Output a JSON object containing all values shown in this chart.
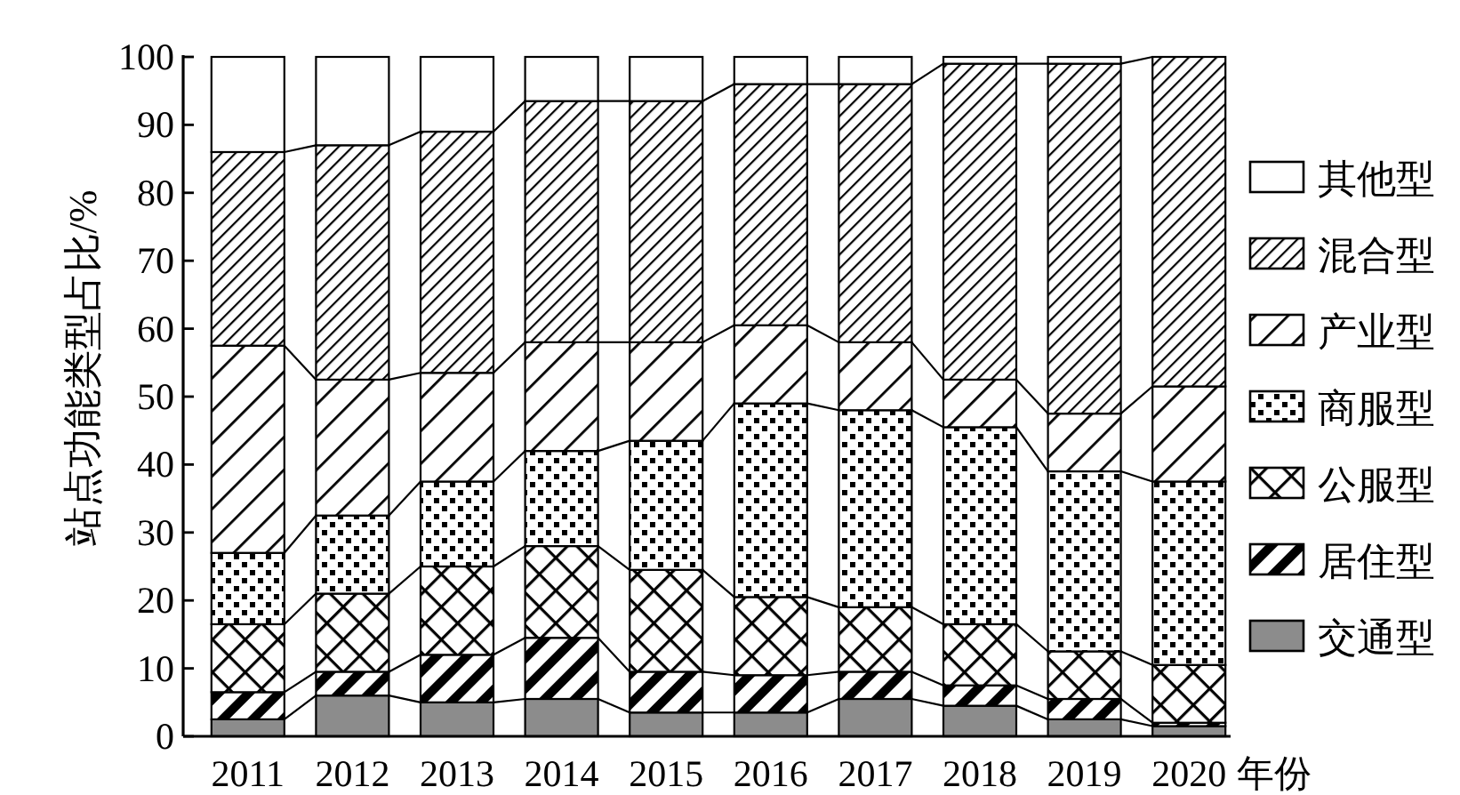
{
  "chart_data": {
    "type": "bar",
    "stacked": true,
    "categories": [
      "2011",
      "2012",
      "2013",
      "2014",
      "2015",
      "2016",
      "2017",
      "2018",
      "2019",
      "2020"
    ],
    "xlabel": "年份",
    "ylabel": "站点功能类型占比/%",
    "ylim": [
      0,
      100
    ],
    "yticks": [
      0,
      10,
      20,
      30,
      40,
      50,
      60,
      70,
      80,
      90,
      100
    ],
    "legend": "right",
    "series": [
      {
        "name": "交通型",
        "color": "#8c8c8c",
        "values": [
          2.5,
          6,
          5,
          5.5,
          3.5,
          3.5,
          5.5,
          4.5,
          2.5,
          1.5
        ]
      },
      {
        "name": "居住型",
        "color": "#000000",
        "values": [
          4,
          3.5,
          7,
          9,
          6,
          5.5,
          4,
          3,
          3,
          0.5
        ]
      },
      {
        "name": "公服型",
        "color": "#000000",
        "values": [
          10,
          11.5,
          13,
          13.5,
          15,
          11.5,
          9.5,
          9,
          7,
          8.5
        ]
      },
      {
        "name": "商服型",
        "color": "#000000",
        "values": [
          10.5,
          11.5,
          12.5,
          14,
          19,
          28.5,
          29,
          29,
          26.5,
          27
        ]
      },
      {
        "name": "产业型",
        "color": "#000000",
        "values": [
          30.5,
          20,
          16,
          16,
          14.5,
          11.5,
          10,
          7,
          8.5,
          14
        ]
      },
      {
        "name": "混合型",
        "color": "#000000",
        "values": [
          28.5,
          34.5,
          35.5,
          35.5,
          35.5,
          35.5,
          38,
          46.5,
          51.5,
          48.5
        ]
      },
      {
        "name": "其他型",
        "color": "#ffffff",
        "values": [
          14,
          13,
          11,
          6.5,
          6.5,
          4,
          4,
          1,
          1,
          0
        ]
      }
    ]
  }
}
